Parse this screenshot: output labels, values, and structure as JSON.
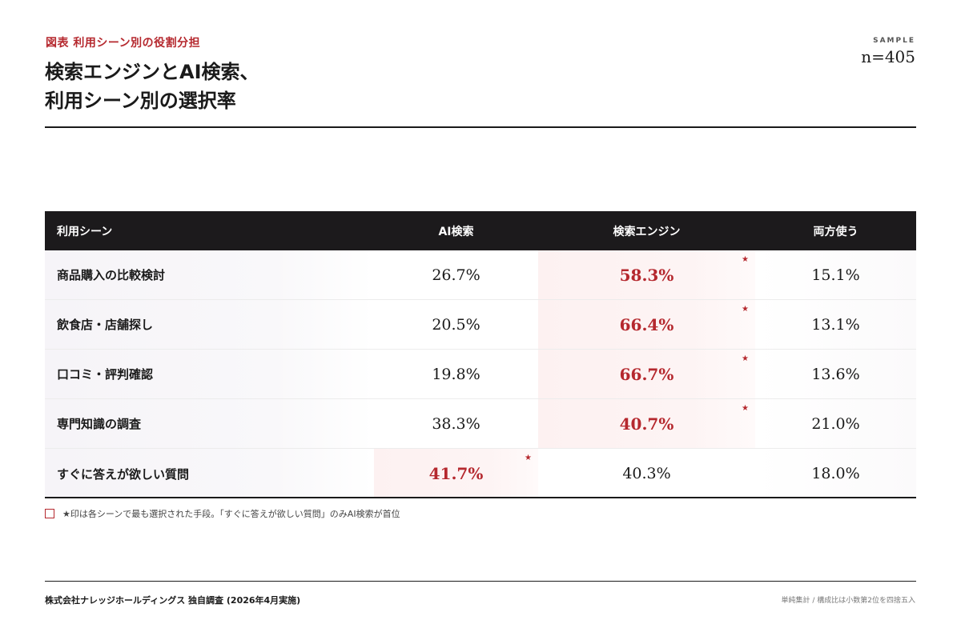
{
  "header": {
    "eyebrow": "図表 利用シーン別の役割分担",
    "title_line1": "検索エンジンとAI検索、",
    "title_line2": "利用シーン別の選択率",
    "sample_label": "SAMPLE",
    "sample_n": "n=405"
  },
  "chart_data": {
    "type": "table",
    "columns": [
      "利用シーン",
      "AI検索",
      "検索エンジン",
      "両方使う"
    ],
    "unit": "%",
    "rows": [
      {
        "scene": "商品購入の比較検討",
        "values": [
          "26.7%",
          "58.3%",
          "15.1%"
        ],
        "top_index": 1
      },
      {
        "scene": "飲食店・店舗探し",
        "values": [
          "20.5%",
          "66.4%",
          "13.1%"
        ],
        "top_index": 1
      },
      {
        "scene": "口コミ・評判確認",
        "values": [
          "19.8%",
          "66.7%",
          "13.6%"
        ],
        "top_index": 1
      },
      {
        "scene": "専門知識の調査",
        "values": [
          "38.3%",
          "40.7%",
          "21.0%"
        ],
        "top_index": 1
      },
      {
        "scene": "すぐに答えが欲しい質問",
        "values": [
          "41.7%",
          "40.3%",
          "18.0%"
        ],
        "top_index": 0
      }
    ]
  },
  "marker": "★",
  "note": "★印は各シーンで最も選択された手段。「すぐに答えが欲しい質問」のみAI検索が首位",
  "footer": {
    "source": "株式会社ナレッジホールディングス 独自調査 (2026年4月実施)",
    "remark": "単純集計 / 構成比は小数第2位を四捨五入"
  },
  "colors": {
    "accent": "#b5282e",
    "header_bg": "#1c1a1c"
  }
}
